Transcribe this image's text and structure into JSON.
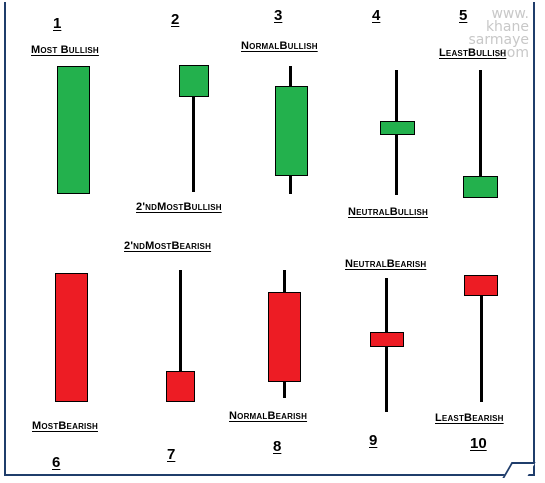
{
  "watermark": [
    "www.",
    "khane",
    "sarmaye",
    ".com"
  ],
  "candles": [
    {
      "number": "1",
      "label": "Most Bullish",
      "color": "#23b14d"
    },
    {
      "number": "2",
      "label": "2'ndMostBullish",
      "color": "#23b14d"
    },
    {
      "number": "3",
      "label": "NormalBullish",
      "color": "#23b14d"
    },
    {
      "number": "4",
      "label": "NeutralBullish",
      "color": "#23b14d"
    },
    {
      "number": "5",
      "label": "LeastBullish",
      "color": "#23b14d"
    },
    {
      "number": "6",
      "label": "MostBearish",
      "color": "#ed1c24"
    },
    {
      "number": "7",
      "label": "2'ndMostBearish",
      "color": "#ed1c24"
    },
    {
      "number": "8",
      "label": "NormalBearish",
      "color": "#ed1c24"
    },
    {
      "number": "9",
      "label": "NeutralBearish",
      "color": "#ed1c24"
    },
    {
      "number": "10",
      "label": "LeastBearish",
      "color": "#ed1c24"
    }
  ]
}
